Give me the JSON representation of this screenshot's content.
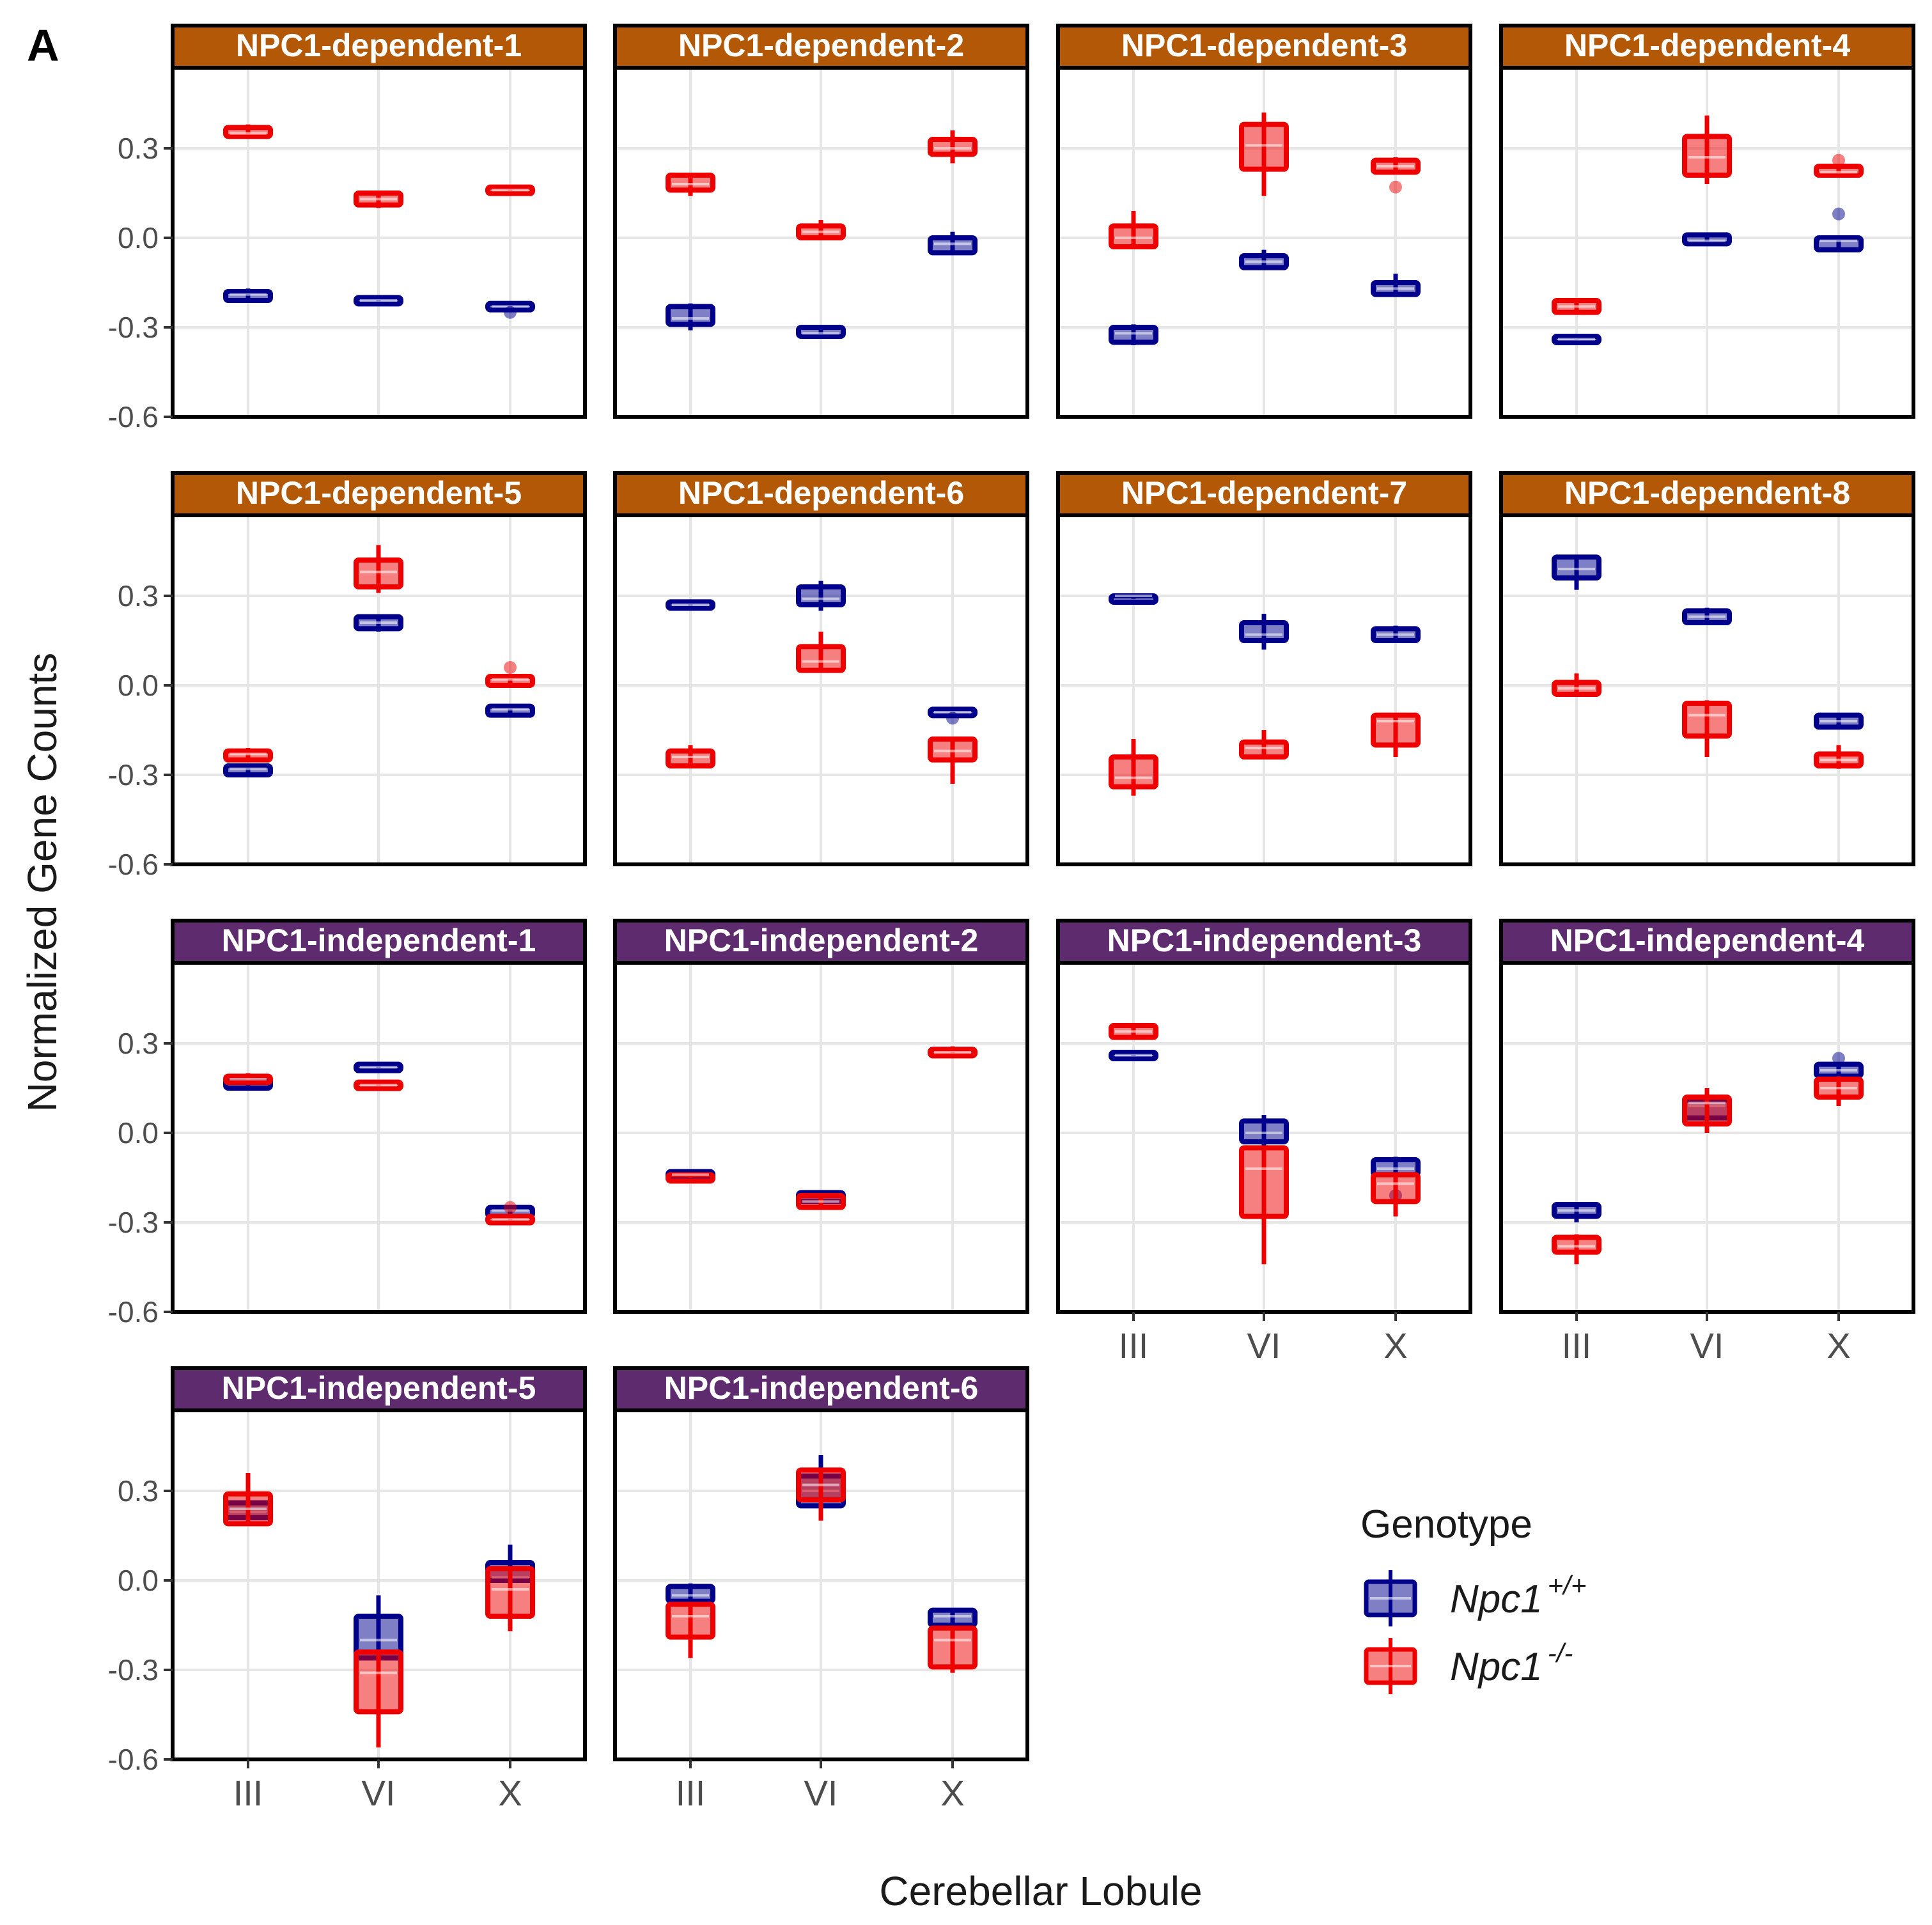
{
  "figure": {
    "panel_letter": "A",
    "ylabel": "Normalized Gene Counts",
    "xlabel": "Cerebellar Lobule"
  },
  "legend": {
    "title": "Genotype",
    "items": [
      {
        "base": "Npc1",
        "sup": "+/+",
        "color": "#00008B"
      },
      {
        "base": "Npc1",
        "sup": "-/-",
        "color": "#EE0000"
      }
    ]
  },
  "colors": {
    "wt": "#00008B",
    "ko": "#EE0000",
    "dependent_strip": "#B35806",
    "independent_strip": "#5E2C6E"
  },
  "chart_data": {
    "type": "boxplot",
    "categories": [
      "III",
      "VI",
      "X"
    ],
    "y_ticks": [
      0.3,
      0.0,
      -0.3,
      -0.6
    ],
    "y_tick_labels": [
      "0.3",
      "0.0",
      "-0.3",
      "-0.6"
    ],
    "ylim": [
      -0.6,
      0.57
    ],
    "series_names": [
      "Npc1+/+",
      "Npc1-/-"
    ],
    "panels": [
      {
        "title": "NPC1-dependent-1",
        "group": "dependent",
        "wt": [
          {
            "q1": -0.21,
            "median": -0.19,
            "q3": -0.18,
            "min": -0.21,
            "max": -0.17,
            "out": []
          },
          {
            "q1": -0.22,
            "median": -0.21,
            "q3": -0.2,
            "min": -0.22,
            "max": -0.2,
            "out": []
          },
          {
            "q1": -0.24,
            "median": -0.23,
            "q3": -0.22,
            "min": -0.24,
            "max": -0.22,
            "out": [
              -0.25
            ]
          }
        ],
        "ko": [
          {
            "q1": 0.34,
            "median": 0.35,
            "q3": 0.37,
            "min": 0.34,
            "max": 0.38,
            "out": []
          },
          {
            "q1": 0.11,
            "median": 0.13,
            "q3": 0.15,
            "min": 0.1,
            "max": 0.15,
            "out": []
          },
          {
            "q1": 0.15,
            "median": 0.16,
            "q3": 0.17,
            "min": 0.15,
            "max": 0.17,
            "out": []
          }
        ]
      },
      {
        "title": "NPC1-dependent-2",
        "group": "dependent",
        "wt": [
          {
            "q1": -0.29,
            "median": -0.27,
            "q3": -0.23,
            "min": -0.31,
            "max": -0.22,
            "out": []
          },
          {
            "q1": -0.33,
            "median": -0.32,
            "q3": -0.3,
            "min": -0.33,
            "max": -0.3,
            "out": []
          },
          {
            "q1": -0.05,
            "median": -0.02,
            "q3": 0.0,
            "min": -0.05,
            "max": 0.02,
            "out": []
          }
        ],
        "ko": [
          {
            "q1": 0.16,
            "median": 0.18,
            "q3": 0.21,
            "min": 0.14,
            "max": 0.21,
            "out": []
          },
          {
            "q1": -0.0,
            "median": 0.02,
            "q3": 0.04,
            "min": -0.0,
            "max": 0.06,
            "out": []
          },
          {
            "q1": 0.28,
            "median": 0.3,
            "q3": 0.33,
            "min": 0.25,
            "max": 0.36,
            "out": []
          }
        ]
      },
      {
        "title": "NPC1-dependent-3",
        "group": "dependent",
        "wt": [
          {
            "q1": -0.35,
            "median": -0.32,
            "q3": -0.3,
            "min": -0.36,
            "max": -0.29,
            "out": []
          },
          {
            "q1": -0.1,
            "median": -0.08,
            "q3": -0.06,
            "min": -0.1,
            "max": -0.04,
            "out": []
          },
          {
            "q1": -0.19,
            "median": -0.17,
            "q3": -0.15,
            "min": -0.19,
            "max": -0.12,
            "out": []
          }
        ],
        "ko": [
          {
            "q1": -0.03,
            "median": 0.0,
            "q3": 0.04,
            "min": -0.03,
            "max": 0.09,
            "out": []
          },
          {
            "q1": 0.23,
            "median": 0.31,
            "q3": 0.38,
            "min": 0.14,
            "max": 0.42,
            "out": []
          },
          {
            "q1": 0.22,
            "median": 0.24,
            "q3": 0.26,
            "min": 0.22,
            "max": 0.27,
            "out": [
              0.17
            ]
          }
        ]
      },
      {
        "title": "NPC1-dependent-4",
        "group": "dependent",
        "wt": [
          {
            "q1": -0.34,
            "median": -0.34,
            "q3": -0.33,
            "min": -0.34,
            "max": -0.33,
            "out": []
          },
          {
            "q1": -0.02,
            "median": -0.01,
            "q3": 0.01,
            "min": -0.02,
            "max": 0.01,
            "out": []
          },
          {
            "q1": -0.04,
            "median": -0.01,
            "q3": 0.0,
            "min": -0.04,
            "max": 0.0,
            "out": [
              0.08
            ]
          }
        ],
        "ko": [
          {
            "q1": -0.25,
            "median": -0.23,
            "q3": -0.21,
            "min": -0.25,
            "max": -0.21,
            "out": []
          },
          {
            "q1": 0.21,
            "median": 0.27,
            "q3": 0.34,
            "min": 0.18,
            "max": 0.41,
            "out": []
          },
          {
            "q1": 0.21,
            "median": 0.22,
            "q3": 0.24,
            "min": 0.21,
            "max": 0.24,
            "out": [
              0.26
            ]
          }
        ]
      },
      {
        "title": "NPC1-dependent-5",
        "group": "dependent",
        "wt": [
          {
            "q1": -0.3,
            "median": -0.28,
            "q3": -0.27,
            "min": -0.3,
            "max": -0.27,
            "out": []
          },
          {
            "q1": 0.19,
            "median": 0.21,
            "q3": 0.23,
            "min": 0.18,
            "max": 0.23,
            "out": []
          },
          {
            "q1": -0.1,
            "median": -0.08,
            "q3": -0.07,
            "min": -0.1,
            "max": -0.07,
            "out": []
          }
        ],
        "ko": [
          {
            "q1": -0.25,
            "median": -0.23,
            "q3": -0.22,
            "min": -0.25,
            "max": -0.21,
            "out": []
          },
          {
            "q1": 0.33,
            "median": 0.38,
            "q3": 0.42,
            "min": 0.31,
            "max": 0.47,
            "out": []
          },
          {
            "q1": 0.0,
            "median": 0.02,
            "q3": 0.03,
            "min": 0.0,
            "max": 0.03,
            "out": [
              0.06
            ]
          }
        ]
      },
      {
        "title": "NPC1-dependent-6",
        "group": "dependent",
        "wt": [
          {
            "q1": 0.26,
            "median": 0.27,
            "q3": 0.28,
            "min": 0.26,
            "max": 0.28,
            "out": []
          },
          {
            "q1": 0.27,
            "median": 0.29,
            "q3": 0.33,
            "min": 0.25,
            "max": 0.35,
            "out": []
          },
          {
            "q1": -0.1,
            "median": -0.09,
            "q3": -0.08,
            "min": -0.1,
            "max": -0.08,
            "out": [
              -0.11
            ]
          }
        ],
        "ko": [
          {
            "q1": -0.27,
            "median": -0.24,
            "q3": -0.22,
            "min": -0.27,
            "max": -0.2,
            "out": []
          },
          {
            "q1": 0.05,
            "median": 0.08,
            "q3": 0.13,
            "min": 0.05,
            "max": 0.18,
            "out": []
          },
          {
            "q1": -0.25,
            "median": -0.22,
            "q3": -0.18,
            "min": -0.33,
            "max": -0.18,
            "out": []
          }
        ]
      },
      {
        "title": "NPC1-dependent-7",
        "group": "dependent",
        "wt": [
          {
            "q1": 0.29,
            "median": 0.3,
            "q3": 0.3,
            "min": 0.29,
            "max": 0.3,
            "out": []
          },
          {
            "q1": 0.15,
            "median": 0.17,
            "q3": 0.21,
            "min": 0.12,
            "max": 0.24,
            "out": []
          },
          {
            "q1": 0.15,
            "median": 0.17,
            "q3": 0.19,
            "min": 0.15,
            "max": 0.2,
            "out": []
          }
        ],
        "ko": [
          {
            "q1": -0.34,
            "median": -0.31,
            "q3": -0.24,
            "min": -0.37,
            "max": -0.18,
            "out": []
          },
          {
            "q1": -0.24,
            "median": -0.21,
            "q3": -0.19,
            "min": -0.24,
            "max": -0.15,
            "out": []
          },
          {
            "q1": -0.2,
            "median": -0.12,
            "q3": -0.1,
            "min": -0.24,
            "max": -0.1,
            "out": []
          }
        ]
      },
      {
        "title": "NPC1-dependent-8",
        "group": "dependent",
        "wt": [
          {
            "q1": 0.36,
            "median": 0.39,
            "q3": 0.43,
            "min": 0.32,
            "max": 0.43,
            "out": []
          },
          {
            "q1": 0.21,
            "median": 0.23,
            "q3": 0.25,
            "min": 0.21,
            "max": 0.26,
            "out": []
          },
          {
            "q1": -0.14,
            "median": -0.12,
            "q3": -0.1,
            "min": -0.14,
            "max": -0.1,
            "out": []
          }
        ],
        "ko": [
          {
            "q1": -0.03,
            "median": -0.01,
            "q3": 0.01,
            "min": -0.03,
            "max": 0.04,
            "out": []
          },
          {
            "q1": -0.17,
            "median": -0.1,
            "q3": -0.06,
            "min": -0.24,
            "max": -0.05,
            "out": []
          },
          {
            "q1": -0.27,
            "median": -0.25,
            "q3": -0.23,
            "min": -0.28,
            "max": -0.2,
            "out": []
          }
        ]
      },
      {
        "title": "NPC1-independent-1",
        "group": "independent",
        "wt": [
          {
            "q1": 0.15,
            "median": 0.17,
            "q3": 0.18,
            "min": 0.15,
            "max": 0.18,
            "out": []
          },
          {
            "q1": 0.21,
            "median": 0.22,
            "q3": 0.23,
            "min": 0.21,
            "max": 0.23,
            "out": []
          },
          {
            "q1": -0.28,
            "median": -0.26,
            "q3": -0.25,
            "min": -0.28,
            "max": -0.25,
            "out": []
          }
        ],
        "ko": [
          {
            "q1": 0.17,
            "median": 0.18,
            "q3": 0.19,
            "min": 0.17,
            "max": 0.2,
            "out": []
          },
          {
            "q1": 0.15,
            "median": 0.16,
            "q3": 0.17,
            "min": 0.15,
            "max": 0.17,
            "out": []
          },
          {
            "q1": -0.3,
            "median": -0.29,
            "q3": -0.28,
            "min": -0.3,
            "max": -0.28,
            "out": [
              -0.25
            ]
          }
        ]
      },
      {
        "title": "NPC1-independent-2",
        "group": "independent",
        "wt": [
          {
            "q1": -0.15,
            "median": -0.14,
            "q3": -0.13,
            "min": -0.15,
            "max": -0.13,
            "out": []
          },
          {
            "q1": -0.23,
            "median": -0.21,
            "q3": -0.2,
            "min": -0.23,
            "max": -0.2,
            "out": []
          },
          {
            "q1": 0.27,
            "median": 0.27,
            "q3": 0.28,
            "min": 0.27,
            "max": 0.28,
            "out": []
          }
        ],
        "ko": [
          {
            "q1": -0.15,
            "median": -0.14,
            "q3": -0.14,
            "min": -0.15,
            "max": -0.14,
            "out": []
          },
          {
            "q1": -0.25,
            "median": -0.23,
            "q3": -0.21,
            "min": -0.25,
            "max": -0.21,
            "out": []
          },
          {
            "q1": 0.26,
            "median": 0.27,
            "q3": 0.28,
            "min": 0.26,
            "max": 0.29,
            "out": []
          }
        ]
      },
      {
        "title": "NPC1-independent-3",
        "group": "independent",
        "wt": [
          {
            "q1": 0.25,
            "median": 0.26,
            "q3": 0.27,
            "min": 0.25,
            "max": 0.27,
            "out": []
          },
          {
            "q1": -0.03,
            "median": 0.0,
            "q3": 0.04,
            "min": -0.06,
            "max": 0.06,
            "out": []
          },
          {
            "q1": -0.14,
            "median": -0.12,
            "q3": -0.09,
            "min": -0.14,
            "max": -0.08,
            "out": [
              -0.21
            ]
          }
        ],
        "ko": [
          {
            "q1": 0.32,
            "median": 0.34,
            "q3": 0.36,
            "min": 0.32,
            "max": 0.36,
            "out": []
          },
          {
            "q1": -0.28,
            "median": -0.12,
            "q3": -0.05,
            "min": -0.44,
            "max": -0.05,
            "out": []
          },
          {
            "q1": -0.23,
            "median": -0.17,
            "q3": -0.14,
            "min": -0.28,
            "max": -0.14,
            "out": []
          }
        ]
      },
      {
        "title": "NPC1-independent-4",
        "group": "independent",
        "wt": [
          {
            "q1": -0.28,
            "median": -0.26,
            "q3": -0.24,
            "min": -0.3,
            "max": -0.24,
            "out": []
          },
          {
            "q1": 0.05,
            "median": 0.09,
            "q3": 0.11,
            "min": 0.05,
            "max": 0.13,
            "out": []
          },
          {
            "q1": 0.19,
            "median": 0.21,
            "q3": 0.23,
            "min": 0.19,
            "max": 0.23,
            "out": [
              0.25
            ]
          }
        ],
        "ko": [
          {
            "q1": -0.4,
            "median": -0.38,
            "q3": -0.35,
            "min": -0.44,
            "max": -0.34,
            "out": []
          },
          {
            "q1": 0.03,
            "median": 0.1,
            "q3": 0.12,
            "min": 0.0,
            "max": 0.15,
            "out": []
          },
          {
            "q1": 0.12,
            "median": 0.15,
            "q3": 0.18,
            "min": 0.09,
            "max": 0.19,
            "out": []
          }
        ]
      },
      {
        "title": "NPC1-independent-5",
        "group": "independent",
        "wt": [
          {
            "q1": 0.21,
            "median": 0.23,
            "q3": 0.26,
            "min": 0.2,
            "max": 0.27,
            "out": []
          },
          {
            "q1": -0.26,
            "median": -0.2,
            "q3": -0.12,
            "min": -0.27,
            "max": -0.05,
            "out": []
          },
          {
            "q1": 0.0,
            "median": 0.01,
            "q3": 0.06,
            "min": -0.05,
            "max": 0.12,
            "out": []
          }
        ],
        "ko": [
          {
            "q1": 0.19,
            "median": 0.24,
            "q3": 0.29,
            "min": 0.19,
            "max": 0.36,
            "out": []
          },
          {
            "q1": -0.44,
            "median": -0.31,
            "q3": -0.24,
            "min": -0.56,
            "max": -0.24,
            "out": []
          },
          {
            "q1": -0.12,
            "median": -0.03,
            "q3": 0.04,
            "min": -0.17,
            "max": 0.04,
            "out": []
          }
        ]
      },
      {
        "title": "NPC1-independent-6",
        "group": "independent",
        "wt": [
          {
            "q1": -0.07,
            "median": -0.05,
            "q3": -0.02,
            "min": -0.07,
            "max": -0.01,
            "out": []
          },
          {
            "q1": 0.25,
            "median": 0.3,
            "q3": 0.35,
            "min": 0.22,
            "max": 0.42,
            "out": []
          },
          {
            "q1": -0.15,
            "median": -0.12,
            "q3": -0.1,
            "min": -0.15,
            "max": -0.1,
            "out": []
          }
        ],
        "ko": [
          {
            "q1": -0.19,
            "median": -0.12,
            "q3": -0.08,
            "min": -0.26,
            "max": -0.08,
            "out": []
          },
          {
            "q1": 0.27,
            "median": 0.32,
            "q3": 0.37,
            "min": 0.2,
            "max": 0.37,
            "out": []
          },
          {
            "q1": -0.29,
            "median": -0.2,
            "q3": -0.16,
            "min": -0.31,
            "max": -0.16,
            "out": []
          }
        ]
      }
    ]
  }
}
